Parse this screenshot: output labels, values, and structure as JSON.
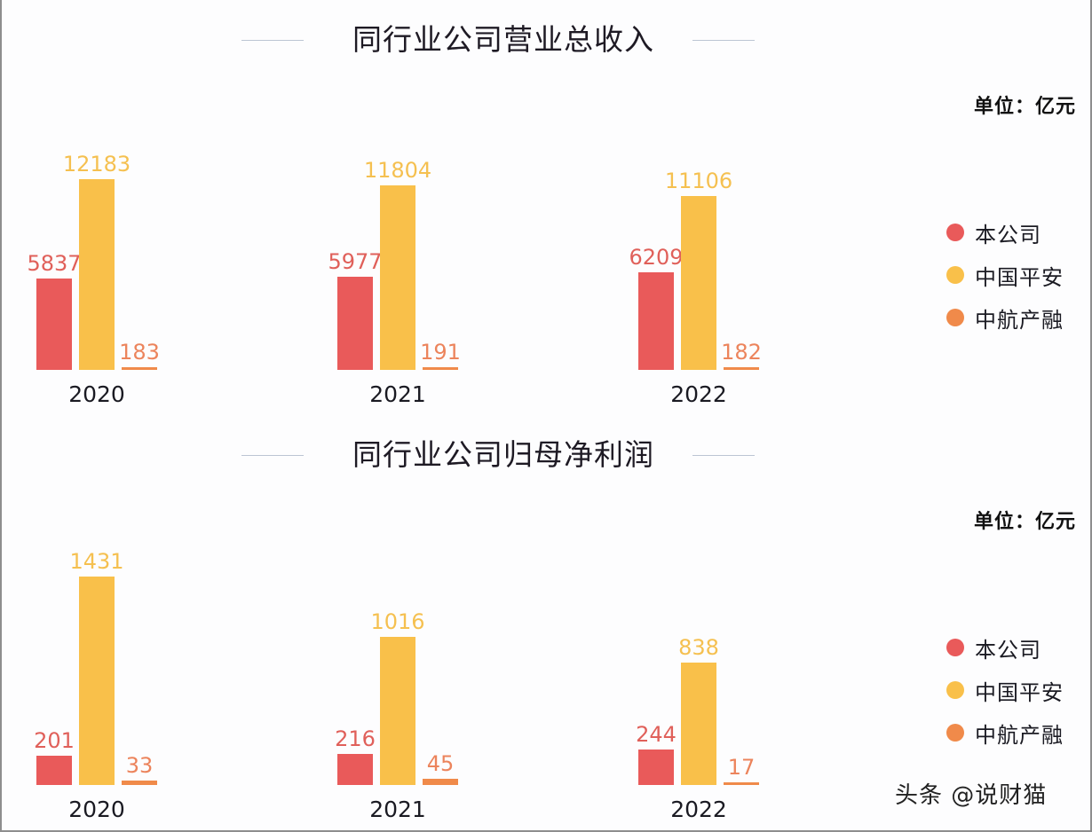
{
  "colors": {
    "self": "#e95a5a",
    "pingan": "#f9c04a",
    "avic": "#f08a4a",
    "self_label": "#e0605a",
    "pingan_label": "#f5c050",
    "avic_label": "#ec845c"
  },
  "legend": [
    {
      "label": "本公司",
      "color": "#e95a5a"
    },
    {
      "label": "中国平安",
      "color": "#f9c04a"
    },
    {
      "label": "中航产融",
      "color": "#f08a4a"
    }
  ],
  "watermark": "头条 @说财猫",
  "chart_data": [
    {
      "type": "bar",
      "title": "同行业公司营业总收入",
      "unit": "单位：亿元",
      "categories": [
        "2020",
        "2021",
        "2022"
      ],
      "series": [
        {
          "name": "本公司",
          "values": [
            5837,
            5977,
            6209
          ]
        },
        {
          "name": "中国平安",
          "values": [
            12183,
            11804,
            11106
          ]
        },
        {
          "name": "中航产融",
          "values": [
            183,
            191,
            182
          ]
        }
      ],
      "xlabel": "",
      "ylabel": "",
      "grid": false,
      "legend_position": "right"
    },
    {
      "type": "bar",
      "title": "同行业公司归母净利润",
      "unit": "单位：亿元",
      "categories": [
        "2020",
        "2021",
        "2022"
      ],
      "series": [
        {
          "name": "本公司",
          "values": [
            201,
            216,
            244
          ]
        },
        {
          "name": "中国平安",
          "values": [
            1431,
            1016,
            838
          ]
        },
        {
          "name": "中航产融",
          "values": [
            33,
            45,
            17
          ]
        }
      ],
      "xlabel": "",
      "ylabel": "",
      "grid": false,
      "legend_position": "right"
    }
  ]
}
